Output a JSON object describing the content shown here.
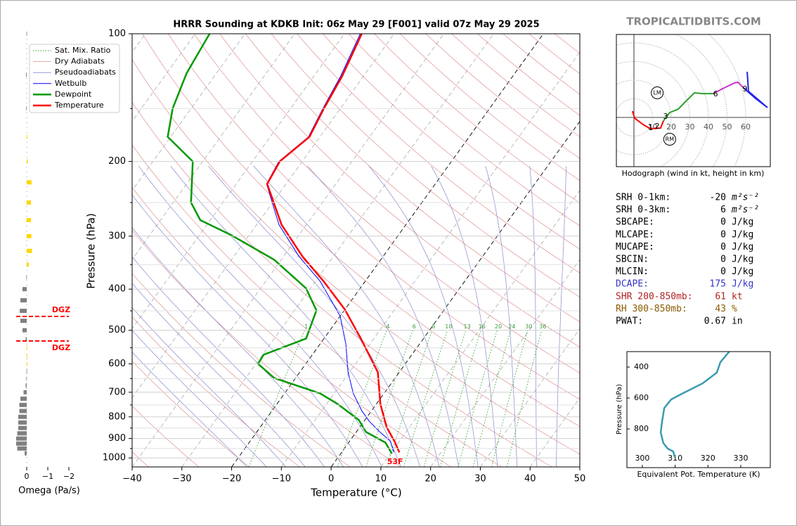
{
  "chart_data": [
    {
      "type": "skewt",
      "title": "HRRR Sounding at KDKB Init: 06z May 29 [F001] valid 07z May 29 2025",
      "watermark": "TROPICALTIDBITS.COM",
      "xlabel": "Temperature (°C)",
      "ylabel": "Pressure (hPa)",
      "xlim": [
        -40,
        50
      ],
      "xticks": [
        {
          "value": -40,
          "label": "−40"
        },
        {
          "value": -30,
          "label": "−30"
        },
        {
          "value": -20,
          "label": "−20"
        },
        {
          "value": -10,
          "label": "−10"
        },
        0,
        10,
        20,
        30,
        40,
        50
      ],
      "ylim": [
        1050,
        100
      ],
      "log_y": true,
      "yticks": [
        100,
        200,
        300,
        400,
        500,
        600,
        700,
        800,
        900,
        1000
      ],
      "yticks_minor": [
        150,
        250,
        350,
        450,
        550,
        650,
        750,
        850,
        950
      ],
      "background_lines": [
        {
          "name": "Sat. Mix. Ratio",
          "color": "#2ca02c"
        },
        {
          "name": "Dry Adiabats",
          "color": "#e09090"
        },
        {
          "name": "Pseudoadiabats",
          "color": "#8888cc"
        }
      ],
      "mixing_ratio_labels": [
        1,
        4,
        6,
        8,
        10,
        13,
        16,
        20,
        24,
        30,
        36
      ],
      "series": [
        {
          "name": "Wetbulb",
          "color": "#0000ff",
          "linewidth": 1,
          "pressure": [
            970,
            913,
            868,
            820,
            775,
            704,
            628,
            539,
            463,
            383,
            335,
            282,
            226,
            200,
            175,
            150,
            126,
            100
          ],
          "values": [
            10.5,
            8.2,
            4.7,
            1.1,
            -1.9,
            -6.2,
            -10.3,
            -14.8,
            -20.0,
            -29.1,
            -36.9,
            -45.5,
            -53.9,
            -54.7,
            -52.3,
            -53.5,
            -54.6,
            -56.8
          ]
        },
        {
          "name": "Dewpoint",
          "color": "#009900",
          "linewidth": 2.5,
          "pressure": [
            977,
            920,
            868,
            814,
            746,
            704,
            648,
            600,
            571,
            523,
            449,
            398,
            341,
            299,
            275,
            250,
            200,
            175,
            150,
            124,
            100
          ],
          "values": [
            10.3,
            7.4,
            1.9,
            -1.2,
            -7.8,
            -12.9,
            -24.3,
            -29.6,
            -29.8,
            -23.6,
            -25.6,
            -30.9,
            -41.4,
            -53.4,
            -62.0,
            -66.4,
            -72.0,
            -80.6,
            -83.7,
            -86.0,
            -87.1
          ]
        },
        {
          "name": "Temperature",
          "color": "#ff0000",
          "linewidth": 2.5,
          "pressure": [
            970,
            913,
            846,
            746,
            628,
            523,
            446,
            383,
            335,
            282,
            226,
            200,
            175,
            150,
            126,
            100
          ],
          "values": [
            11.6,
            9.0,
            5.4,
            0.8,
            -4.3,
            -12.6,
            -20.1,
            -28.4,
            -36.2,
            -45.0,
            -53.8,
            -54.5,
            -52.1,
            -53.3,
            -54.3,
            -56.5
          ]
        }
      ],
      "surface_label": "53F"
    },
    {
      "type": "omega-bars",
      "xlabel": "Omega (Pa/s)",
      "xlim": [
        0.5,
        -2
      ],
      "xticks": [
        0,
        {
          "value": -1,
          "label": "−1"
        },
        {
          "value": -2,
          "label": "−2"
        }
      ],
      "colors": {
        "positive": "#808080",
        "negative": "#ffd700"
      },
      "pressure": [
        100,
        125,
        150,
        175,
        200,
        224,
        250,
        275,
        300,
        325,
        350,
        375,
        400,
        425,
        450,
        475,
        500,
        525,
        550,
        575,
        600,
        625,
        650,
        675,
        700,
        725,
        750,
        775,
        800,
        825,
        850,
        875,
        900,
        925,
        950,
        975
      ],
      "values": [
        0.01,
        0.03,
        0.02,
        -0.03,
        -0.05,
        -0.23,
        -0.2,
        -0.2,
        -0.22,
        -0.25,
        -0.1,
        0.02,
        0.2,
        0.3,
        0.33,
        0.3,
        0.2,
        0.05,
        -0.02,
        -0.01,
        -0.01,
        0.01,
        0.02,
        0.05,
        0.15,
        0.3,
        0.35,
        0.35,
        0.4,
        0.4,
        0.4,
        0.45,
        0.5,
        0.5,
        0.45,
        0.1
      ],
      "dgz": {
        "label": "DGZ",
        "pressure": [
          464,
          530
        ],
        "color": "#ff0000"
      }
    },
    {
      "type": "hodograph",
      "caption": "Hodograph (wind in kt, height in km)",
      "rings": [
        10,
        20,
        30,
        40,
        50,
        60
      ],
      "segments": [
        {
          "color": "#ff0000",
          "u": [
            -0.8,
            0.4,
            4.9,
            8.7,
            14.3,
            15.8
          ],
          "v": [
            3.4,
            -0.4,
            -3.8,
            -6.0,
            -5.7,
            -1.9
          ]
        },
        {
          "color": "#2ca02c",
          "u": [
            15.8,
            19.2,
            23.8,
            27.5,
            32.5,
            37.0,
            42.6
          ],
          "v": [
            -1.9,
            2.6,
            4.5,
            8.3,
            13.2,
            12.8,
            12.8
          ]
        },
        {
          "color": "#cc33cc",
          "u": [
            42.6,
            48.3,
            54.0,
            55.8,
            58.9
          ],
          "v": [
            12.8,
            15.8,
            18.5,
            18.9,
            15.8
          ]
        },
        {
          "color": "#2222ee",
          "u": [
            58.9,
            65.3,
            71.7,
            61.5,
            60.8
          ],
          "v": [
            15.8,
            10.2,
            5.3,
            14.0,
            24.5
          ]
        }
      ],
      "heights": [
        {
          "label": 1,
          "u": 9.0,
          "v": -5.7
        },
        {
          "label": 2,
          "u": 12.5,
          "v": -4.9
        },
        {
          "label": 3,
          "u": 17.0,
          "v": 0.4
        },
        {
          "label": 6,
          "u": 43.8,
          "v": 12.5
        },
        {
          "label": 9,
          "u": 59.6,
          "v": 15.1
        }
      ],
      "markers": [
        {
          "label": "LM",
          "u": 12.5,
          "v": 13.2
        },
        {
          "label": "RM",
          "u": 19.2,
          "v": -11.7
        }
      ]
    },
    {
      "type": "profile",
      "xlabel": "Equivalent Pot. Temperature (K)",
      "ylabel": "Pressure (hPa)",
      "xlim": [
        295.3,
        339
      ],
      "xticks": [
        300,
        310,
        320,
        330
      ],
      "ylim": [
        1050,
        300
      ],
      "yticks": [
        400,
        600,
        800
      ],
      "color": "#3a9ab0",
      "x": [
        326.5,
        323.8,
        322.7,
        318.4,
        312.0,
        308.8,
        306.7,
        306.0,
        305.6,
        306.4,
        307.7,
        309.4,
        309.9
      ],
      "y": [
        300,
        368,
        436,
        505,
        573,
        609,
        664,
        755,
        823,
        891,
        927,
        945,
        982
      ]
    }
  ],
  "stats": {
    "rows": [
      {
        "label": "SRH 0-1km:",
        "value": -20,
        "unit": "m²s⁻²",
        "color": "#000000"
      },
      {
        "label": "SRH 0-3km:",
        "value": 6,
        "unit": "m²s⁻²",
        "color": "#000000"
      },
      {
        "label": "SBCAPE:",
        "value": 0,
        "unit": "J/kg",
        "color": "#000000"
      },
      {
        "label": "MLCAPE:",
        "value": 0,
        "unit": "J/kg",
        "color": "#000000"
      },
      {
        "label": "MUCAPE:",
        "value": 0,
        "unit": "J/kg",
        "color": "#000000"
      },
      {
        "label": "SBCIN:",
        "value": 0,
        "unit": "J/kg",
        "color": "#000000"
      },
      {
        "label": "MLCIN:",
        "value": 0,
        "unit": "J/kg",
        "color": "#000000"
      },
      {
        "label": "DCAPE:",
        "value": 175,
        "unit": "J/kg",
        "color": "#3333cc"
      },
      {
        "label": "SHR 200-850mb:",
        "value": 61,
        "unit": "kt",
        "color": "#b22222"
      },
      {
        "label": "RH 300-850mb:",
        "value": 43,
        "unit": "%",
        "color": "#8b5a00"
      },
      {
        "label": "PWAT:",
        "value": 0.67,
        "unit": "in",
        "color": "#000000"
      }
    ]
  }
}
